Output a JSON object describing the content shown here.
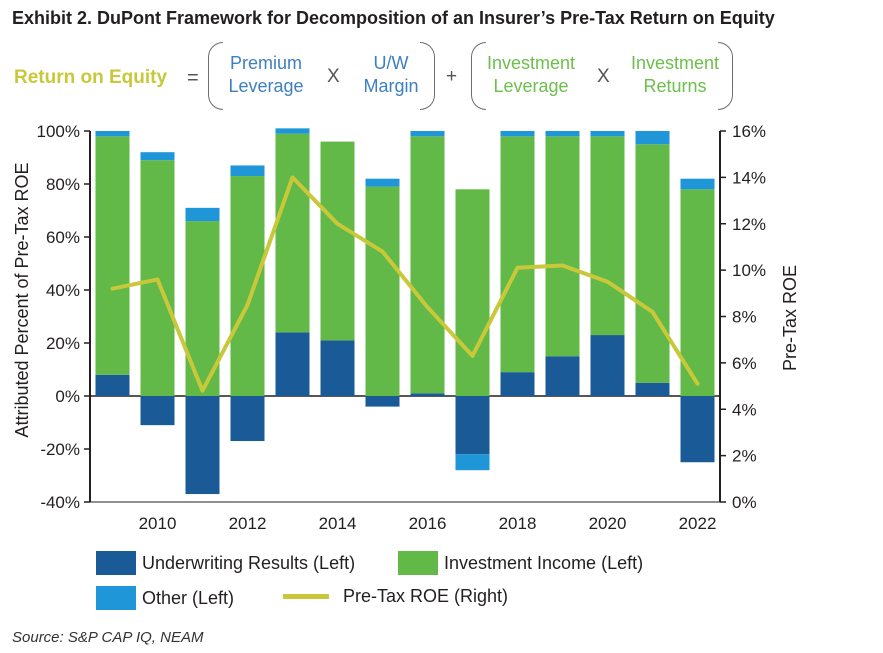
{
  "title": "Exhibit 2. DuPont Framework for Decomposition of an Insurer’s Pre-Tax Return on Equity",
  "formula": {
    "lhs": "Return on Equity",
    "equals": "=",
    "times1": "X",
    "plus": "+",
    "times2": "X",
    "premium_line1": "Premium",
    "premium_line2": "Leverage",
    "uw_line1": "U/W",
    "uw_line2": "Margin",
    "inv_lev_line1": "Investment",
    "inv_lev_line2": "Leverage",
    "inv_ret_line1": "Investment",
    "inv_ret_line2": "Returns",
    "colors": {
      "lhs": "#c8c83a",
      "blue_terms": "#3d7fc1",
      "green_terms": "#6cbf4a"
    }
  },
  "chart_data": {
    "type": "bar",
    "stacked": true,
    "years": [
      2009,
      2010,
      2011,
      2012,
      2013,
      2014,
      2015,
      2016,
      2017,
      2018,
      2019,
      2020,
      2021,
      2022
    ],
    "x_tick_labels": [
      "2010",
      "2012",
      "2014",
      "2016",
      "2018",
      "2020",
      "2022"
    ],
    "x_tick_years": [
      2010,
      2012,
      2014,
      2016,
      2018,
      2020,
      2022
    ],
    "ylabel_left": "Attributed Percent of Pre-Tax ROE",
    "ylabel_right": "Pre-Tax ROE",
    "ylim_left": [
      -40,
      100
    ],
    "ylim_right": [
      0,
      16
    ],
    "y_ticks_left": [
      "100%",
      "80%",
      "60%",
      "40%",
      "20%",
      "0%",
      "-20%",
      "-40%"
    ],
    "y_ticks_left_values": [
      100,
      80,
      60,
      40,
      20,
      0,
      -20,
      -40
    ],
    "y_ticks_right": [
      "16%",
      "14%",
      "12%",
      "10%",
      "8%",
      "6%",
      "4%",
      "2%",
      "0%"
    ],
    "y_ticks_right_values": [
      16,
      14,
      12,
      10,
      8,
      6,
      4,
      2,
      0
    ],
    "series": [
      {
        "name": "Underwriting Results (Left)",
        "color": "#1a5a96",
        "values": [
          8,
          -11,
          -37,
          -17,
          24,
          21,
          -4,
          1,
          -22,
          9,
          15,
          23,
          5,
          -25
        ]
      },
      {
        "name": "Investment Income (Left)",
        "color": "#62b947",
        "values": [
          90,
          89,
          66,
          83,
          75,
          75,
          79,
          97,
          78,
          89,
          83,
          75,
          90,
          78
        ]
      },
      {
        "name": "Other (Left)",
        "color": "#1e96d8",
        "values": [
          2,
          3,
          5,
          4,
          2,
          0,
          3,
          2,
          -6,
          2,
          2,
          2,
          5,
          4
        ]
      },
      {
        "name": "Pre-Tax ROE (Right)",
        "color": "#c8c83a",
        "type": "line",
        "values": [
          9.2,
          9.6,
          4.8,
          8.5,
          14.0,
          12.0,
          10.8,
          8.4,
          6.3,
          10.1,
          10.2,
          9.5,
          8.2,
          5.1
        ]
      }
    ]
  },
  "legend": {
    "underwriting": "Underwriting Results (Left)",
    "investment": "Investment Income (Left)",
    "other": "Other (Left)",
    "roe": "Pre-Tax ROE (Right)"
  },
  "source": "Source: S&P CAP IQ, NEAM"
}
